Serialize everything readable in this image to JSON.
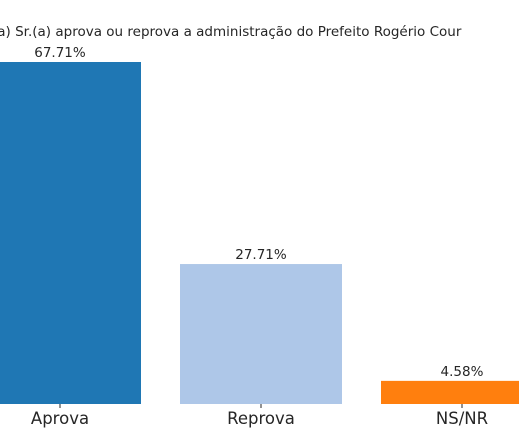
{
  "chart_data": {
    "type": "bar",
    "title": "(a) Sr.(a) aprova ou reprova a administração do Prefeito Rogério Cour",
    "categories": [
      "Aprova",
      "Reprova",
      "NS/NR"
    ],
    "values": [
      67.71,
      27.71,
      4.58
    ],
    "value_labels": [
      "67.71%",
      "27.71%",
      "4.58%"
    ],
    "colors": [
      "#1f77b4",
      "#aec7e8",
      "#ff7f0e"
    ],
    "ylim": [
      0,
      67.71
    ],
    "grid": false,
    "xlabel": "",
    "ylabel": ""
  }
}
